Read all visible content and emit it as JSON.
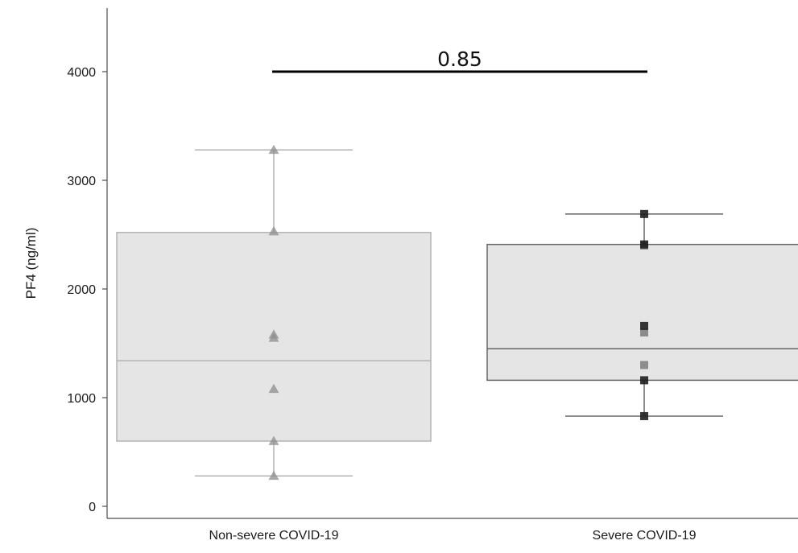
{
  "chart_data": {
    "type": "box",
    "ylabel": "PF4 (ng/ml)",
    "ylim": [
      -100,
      4600
    ],
    "yticks": [
      0,
      1000,
      2000,
      3000,
      4000
    ],
    "ytick_labels": [
      "0",
      "1000",
      "2000",
      "3000",
      "4000"
    ],
    "categories": [
      "Non-severe COVID-19",
      "Severe COVID-19"
    ],
    "groups": [
      {
        "category": "Non-severe COVID-19",
        "marker": "triangle",
        "color": "#8c8c8c",
        "box_fill": "#e5e5e5",
        "box_stroke": "#b3b3b3",
        "whisker_color": "#b3b3b3",
        "min": 280,
        "q1": 600,
        "median": 1340,
        "q3": 2520,
        "max": 3280,
        "points": [
          280,
          600,
          1080,
          1550,
          1580,
          2530,
          3280
        ]
      },
      {
        "category": "Severe COVID-19",
        "marker": "square",
        "color": "#1f1f1f",
        "box_fill": "#e5e5e5",
        "box_stroke": "#666666",
        "whisker_color": "#666666",
        "min": 830,
        "q1": 1160,
        "median": 1450,
        "q3": 2410,
        "max": 2690,
        "points": [
          830,
          1160,
          1300,
          1600,
          1660,
          2400,
          2410,
          2690
        ]
      }
    ],
    "annotations": [
      {
        "type": "significance",
        "text": "0.85",
        "y": 4000,
        "from": "Non-severe COVID-19",
        "to": "Severe COVID-19"
      }
    ],
    "grid": false,
    "legend": "none"
  }
}
